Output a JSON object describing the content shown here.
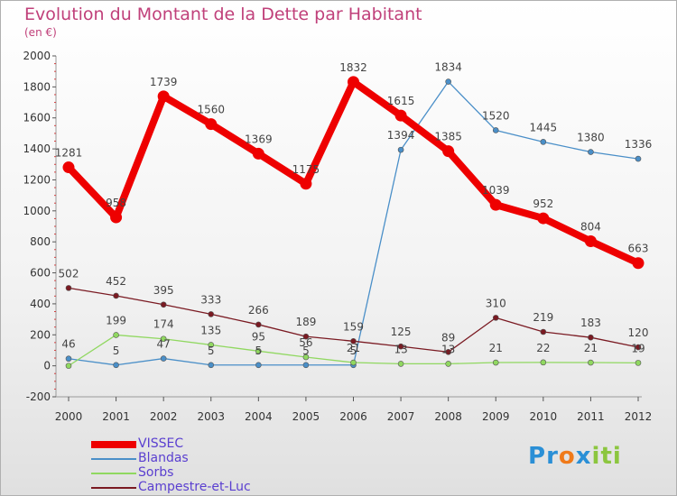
{
  "header": {
    "title": "Evolution du Montant de la Dette par Habitant",
    "subtitle": "(en €)"
  },
  "brand": {
    "letters": [
      {
        "ch": "P",
        "color": "#2a8fd6"
      },
      {
        "ch": "r",
        "color": "#2a8fd6"
      },
      {
        "ch": "o",
        "color": "#f07a1a"
      },
      {
        "ch": "x",
        "color": "#2a8fd6"
      },
      {
        "ch": "i",
        "color": "#8cc63f"
      },
      {
        "ch": "t",
        "color": "#8cc63f"
      },
      {
        "ch": "i",
        "color": "#8cc63f"
      }
    ]
  },
  "chart_data": {
    "type": "line",
    "title": "Evolution du Montant de la Dette par Habitant",
    "subtitle": "(en €)",
    "x": [
      "2000",
      "2001",
      "2002",
      "2003",
      "2004",
      "2005",
      "2006",
      "2007",
      "2008",
      "2009",
      "2010",
      "2011",
      "2012"
    ],
    "ylim": [
      -200,
      2000
    ],
    "yticks": [
      -200,
      0,
      200,
      400,
      600,
      800,
      1000,
      1200,
      1400,
      1600,
      1800,
      2000
    ],
    "grid": false,
    "legend_position": "bottom-left",
    "series": [
      {
        "name": "VISSEC",
        "color": "#ee0000",
        "emphasis": true,
        "values": [
          1281,
          958,
          1739,
          1560,
          1369,
          1175,
          1832,
          1615,
          1385,
          1039,
          952,
          804,
          663
        ]
      },
      {
        "name": "Blandas",
        "color": "#4a8fc8",
        "emphasis": false,
        "values": [
          46,
          5,
          47,
          5,
          5,
          5,
          5,
          1394,
          1834,
          1520,
          1445,
          1380,
          1336
        ]
      },
      {
        "name": "Sorbs",
        "color": "#90d860",
        "emphasis": false,
        "values": [
          0,
          199,
          174,
          135,
          95,
          56,
          21,
          13,
          13,
          21,
          22,
          21,
          19
        ]
      },
      {
        "name": "Campestre-et-Luc",
        "color": "#7a1a22",
        "emphasis": false,
        "values": [
          502,
          452,
          395,
          333,
          266,
          189,
          159,
          125,
          89,
          310,
          219,
          183,
          120
        ]
      }
    ],
    "data_labels": [
      [
        1281,
        958,
        1739,
        1560,
        1369,
        1175,
        1832,
        1615,
        1385,
        1039,
        952,
        804,
        663
      ],
      [
        46,
        5,
        47,
        5,
        5,
        5,
        5,
        1394,
        1834,
        1520,
        1445,
        1380,
        1336
      ],
      [
        null,
        199,
        174,
        135,
        95,
        56,
        21,
        13,
        13,
        21,
        22,
        21,
        19
      ],
      [
        502,
        452,
        395,
        333,
        266,
        189,
        159,
        125,
        89,
        310,
        219,
        183,
        120
      ]
    ]
  }
}
